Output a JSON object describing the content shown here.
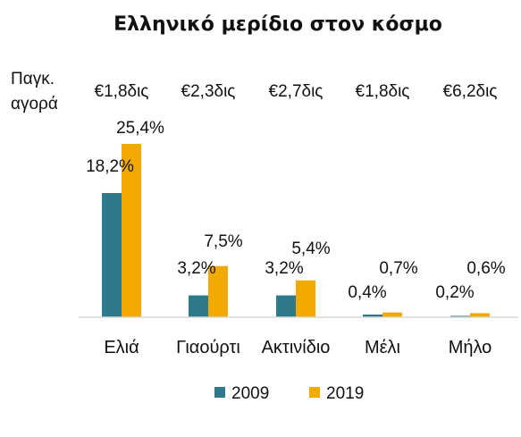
{
  "chart_data": {
    "type": "bar",
    "title": "Ελληνικό μερίδιο στον κόσμο",
    "row_label": [
      "Παγκ.",
      "αγορά"
    ],
    "market_values": [
      "€1,8δις",
      "€2,3δις",
      "€2,7δις",
      "€1,8δις",
      "€6,2δις"
    ],
    "categories": [
      "Ελιά",
      "Γιαούρτι",
      "Ακτινίδιο",
      "Μέλι",
      "Μήλο"
    ],
    "series": [
      {
        "name": "2009",
        "color": "#2E7A8C",
        "values": [
          18.2,
          3.2,
          3.2,
          0.4,
          0.2
        ],
        "labels": [
          "18,2%",
          "3,2%",
          "3,2%",
          "0,4%",
          "0,2%"
        ]
      },
      {
        "name": "2019",
        "color": "#F2A900",
        "values": [
          25.4,
          7.5,
          5.4,
          0.7,
          0.6
        ],
        "labels": [
          "25,4%",
          "7,5%",
          "5,4%",
          "0,7%",
          "0,6%"
        ]
      }
    ],
    "ylim": [
      0,
      25.4
    ],
    "grid": false,
    "legend": "bottom"
  }
}
